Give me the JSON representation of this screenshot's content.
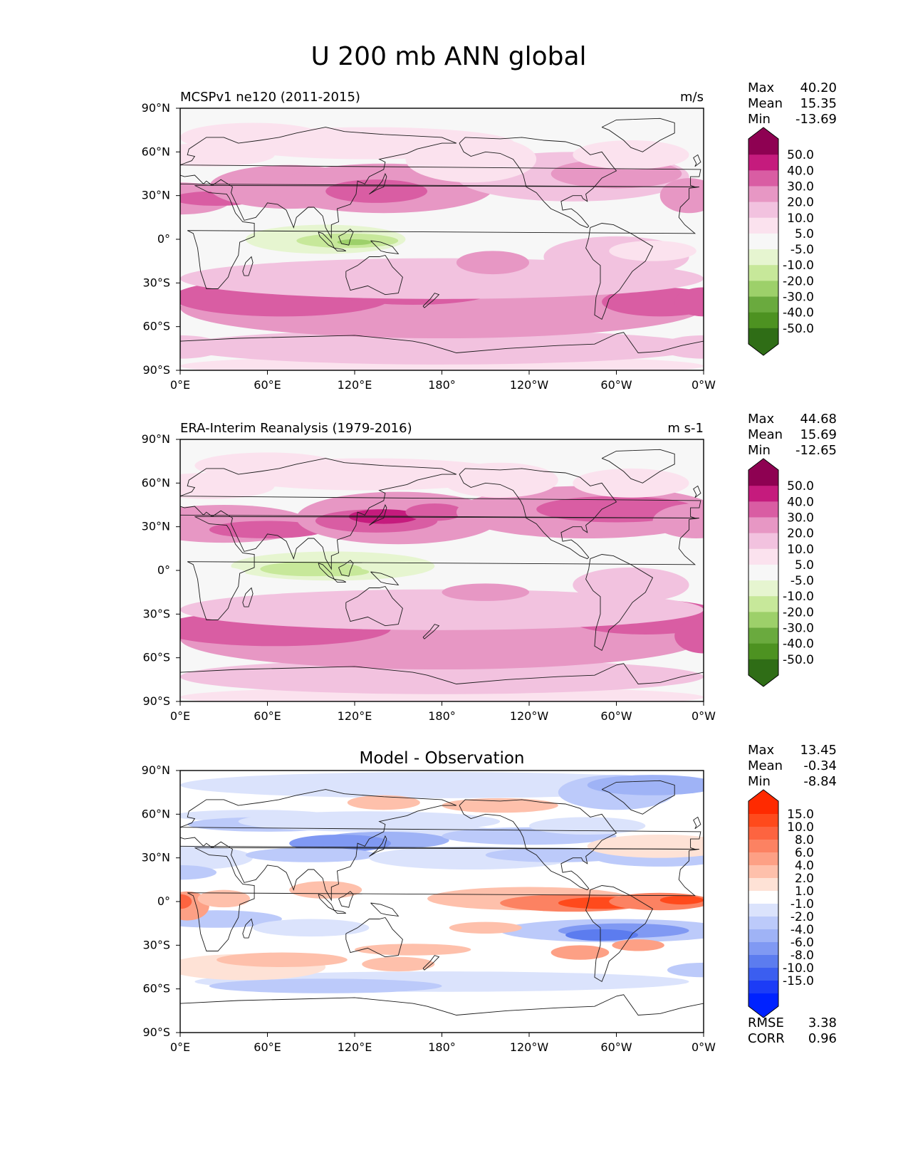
{
  "figure_title": "U 200 mb ANN global",
  "chart_data": [
    {
      "type": "heatmap",
      "title": "MCSPv1 ne120 (2011-2015)",
      "units": "m/s",
      "stats": [
        {
          "label": "Max",
          "value": "40.20"
        },
        {
          "label": "Mean",
          "value": "15.35"
        },
        {
          "label": "Min",
          "value": "-13.69"
        }
      ],
      "xticks": [
        "0°E",
        "60°E",
        "120°E",
        "180°",
        "120°W",
        "60°W",
        "0°W"
      ],
      "yticks": [
        "90°N",
        "60°N",
        "30°N",
        "0°",
        "30°S",
        "60°S",
        "90°S"
      ],
      "xlim": [
        0,
        360
      ],
      "ylim": [
        -90,
        90
      ],
      "colorbar": {
        "labels": [
          "50.0",
          "40.0",
          "30.0",
          "20.0",
          "10.0",
          "5.0",
          "-5.0",
          "-10.0",
          "-20.0",
          "-30.0",
          "-40.0",
          "-50.0"
        ],
        "colors": [
          "#8e0152",
          "#c51b7d",
          "#d95da3",
          "#e797c4",
          "#f2c2df",
          "#fbe2ee",
          "#f7f7f7",
          "#e6f5d0",
          "#c7e89a",
          "#9dd06a",
          "#6aaa3e",
          "#4d9221",
          "#2f6d16"
        ]
      },
      "field": "model"
    },
    {
      "type": "heatmap",
      "title": "ERA-Interim Reanalysis (1979-2016)",
      "units": "m s-1",
      "stats": [
        {
          "label": "Max",
          "value": "44.68"
        },
        {
          "label": "Mean",
          "value": "15.69"
        },
        {
          "label": "Min",
          "value": "-12.65"
        }
      ],
      "xticks": [
        "0°E",
        "60°E",
        "120°E",
        "180°",
        "120°W",
        "60°W",
        "0°W"
      ],
      "yticks": [
        "90°N",
        "60°N",
        "30°N",
        "0°",
        "30°S",
        "60°S",
        "90°S"
      ],
      "xlim": [
        0,
        360
      ],
      "ylim": [
        -90,
        90
      ],
      "colorbar": {
        "labels": [
          "50.0",
          "40.0",
          "30.0",
          "20.0",
          "10.0",
          "5.0",
          "-5.0",
          "-10.0",
          "-20.0",
          "-30.0",
          "-40.0",
          "-50.0"
        ],
        "colors": [
          "#8e0152",
          "#c51b7d",
          "#d95da3",
          "#e797c4",
          "#f2c2df",
          "#fbe2ee",
          "#f7f7f7",
          "#e6f5d0",
          "#c7e89a",
          "#9dd06a",
          "#6aaa3e",
          "#4d9221",
          "#2f6d16"
        ]
      },
      "field": "obs"
    },
    {
      "type": "heatmap",
      "title": "Model - Observation",
      "units": "",
      "stats": [
        {
          "label": "Max",
          "value": "13.45"
        },
        {
          "label": "Mean",
          "value": "-0.34"
        },
        {
          "label": "Min",
          "value": "-8.84"
        }
      ],
      "extra_stats": [
        {
          "label": "RMSE",
          "value": "3.38"
        },
        {
          "label": "CORR",
          "value": "0.96"
        }
      ],
      "xticks": [
        "0°E",
        "60°E",
        "120°E",
        "180°",
        "120°W",
        "60°W",
        "0°W"
      ],
      "yticks": [
        "90°N",
        "60°N",
        "30°N",
        "0°",
        "30°S",
        "60°S",
        "90°S"
      ],
      "xlim": [
        0,
        360
      ],
      "ylim": [
        -90,
        90
      ],
      "colorbar": {
        "labels": [
          "15.0",
          "10.0",
          "8.0",
          "6.0",
          "4.0",
          "2.0",
          "1.0",
          "-1.0",
          "-2.0",
          "-4.0",
          "-6.0",
          "-8.0",
          "-10.0",
          "-15.0"
        ],
        "colors": [
          "#ff2a00",
          "#ff4a1c",
          "#fd6440",
          "#fc8262",
          "#fda085",
          "#fec0ab",
          "#fee2d6",
          "#ffffff",
          "#dbe3fc",
          "#bccafa",
          "#9fb3f6",
          "#8099f3",
          "#5c7cef",
          "#3b5ef0",
          "#1c3cf6",
          "#0022ff"
        ]
      },
      "field": "diff"
    }
  ]
}
